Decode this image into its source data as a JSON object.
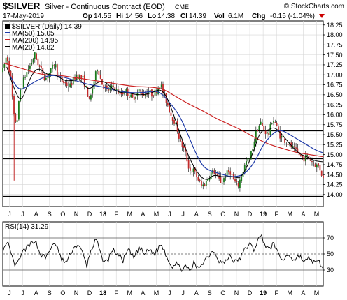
{
  "header": {
    "symbol": "$SILVER",
    "name": "Silver - Continuous Contract (EOD)",
    "exchange": "CME",
    "watermark": "© StockCharts.com",
    "date": "17-May-2019",
    "op_label": "Op",
    "op": "14.55",
    "hi_label": "Hi",
    "hi": "14.56",
    "lo_label": "Lo",
    "lo": "14.38",
    "cl_label": "Cl",
    "cl": "14.39",
    "vol_label": "Vol",
    "vol": "6.1M",
    "chg_label": "Chg",
    "chg": "-0.15 (-1.04%)",
    "chg_color": "#cc0000"
  },
  "legend": [
    {
      "label": "$SILVER (Daily) 14.39",
      "color": "#000000",
      "kind": "candle"
    },
    {
      "label": "MA(50) 15.05",
      "color": "#1f3ba8",
      "kind": "line"
    },
    {
      "label": "MA(200) 14.95",
      "color": "#cc2222",
      "kind": "line"
    },
    {
      "label": "MA(20) 14.82",
      "color": "#000000",
      "kind": "line"
    }
  ],
  "rsi_legend": "RSI(14) 31.29",
  "chart_data": {
    "type": "candlestick",
    "y_axis": {
      "min": 13.7,
      "max": 18.35,
      "ticks": [
        "18.25",
        "18.00",
        "17.75",
        "17.50",
        "17.25",
        "17.00",
        "16.75",
        "16.50",
        "16.25",
        "16.00",
        "15.75",
        "15.50",
        "15.25",
        "15.00",
        "14.75",
        "14.50",
        "14.25",
        "14.00"
      ]
    },
    "x_axis": {
      "labels": [
        "J",
        "J",
        "A",
        "S",
        "O",
        "N",
        "D",
        "18",
        "F",
        "M",
        "A",
        "M",
        "J",
        "J",
        "A",
        "S",
        "O",
        "N",
        "D",
        "19",
        "F",
        "M",
        "A",
        "M"
      ]
    },
    "horizontal_lines": [
      15.6,
      14.9,
      13.95
    ],
    "price_path": [
      [
        0,
        17.1
      ],
      [
        0.3,
        17.5
      ],
      [
        0.6,
        16.9
      ],
      [
        0.85,
        15.9
      ],
      [
        1.05,
        15.8
      ],
      [
        1.3,
        16.6
      ],
      [
        1.7,
        17.0
      ],
      [
        2.0,
        17.2
      ],
      [
        2.4,
        17.5
      ],
      [
        2.8,
        17.15
      ],
      [
        3.2,
        16.9
      ],
      [
        3.6,
        17.1
      ],
      [
        3.9,
        17.3
      ],
      [
        4.2,
        16.9
      ],
      [
        4.6,
        16.8
      ],
      [
        5.0,
        16.7
      ],
      [
        5.5,
        17.0
      ],
      [
        6.0,
        16.9
      ],
      [
        6.3,
        16.6
      ],
      [
        6.5,
        16.3
      ],
      [
        6.8,
        16.8
      ],
      [
        7.1,
        17.2
      ],
      [
        7.4,
        16.8
      ],
      [
        7.8,
        16.6
      ],
      [
        8.3,
        16.7
      ],
      [
        8.8,
        16.5
      ],
      [
        9.2,
        16.6
      ],
      [
        9.7,
        16.4
      ],
      [
        10.2,
        16.6
      ],
      [
        10.6,
        16.5
      ],
      [
        10.9,
        16.6
      ],
      [
        11.2,
        16.5
      ],
      [
        11.5,
        16.6
      ],
      [
        11.8,
        16.8
      ],
      [
        12.0,
        16.55
      ],
      [
        12.3,
        16.3
      ],
      [
        12.6,
        16.0
      ],
      [
        12.9,
        15.8
      ],
      [
        13.1,
        15.6
      ],
      [
        13.3,
        15.3
      ],
      [
        13.5,
        15.2
      ],
      [
        13.7,
        15.0
      ],
      [
        14.0,
        14.6
      ],
      [
        14.3,
        14.6
      ],
      [
        14.6,
        14.4
      ],
      [
        14.9,
        14.2
      ],
      [
        15.2,
        14.3
      ],
      [
        15.5,
        14.5
      ],
      [
        15.8,
        14.6
      ],
      [
        16.1,
        14.4
      ],
      [
        16.4,
        14.3
      ],
      [
        16.7,
        14.5
      ],
      [
        17.0,
        14.6
      ],
      [
        17.3,
        14.35
      ],
      [
        17.6,
        14.2
      ],
      [
        17.9,
        14.5
      ],
      [
        18.2,
        14.8
      ],
      [
        18.5,
        14.9
      ],
      [
        18.8,
        15.3
      ],
      [
        19.0,
        15.6
      ],
      [
        19.3,
        15.8
      ],
      [
        19.6,
        15.6
      ],
      [
        19.9,
        15.5
      ],
      [
        20.2,
        15.9
      ],
      [
        20.4,
        15.8
      ],
      [
        20.7,
        15.5
      ],
      [
        21.0,
        15.4
      ],
      [
        21.3,
        15.3
      ],
      [
        21.6,
        15.2
      ],
      [
        21.9,
        15.1
      ],
      [
        22.2,
        15.0
      ],
      [
        22.5,
        14.9
      ],
      [
        22.8,
        14.95
      ],
      [
        23.1,
        14.85
      ],
      [
        23.4,
        14.75
      ],
      [
        23.7,
        14.7
      ],
      [
        23.9,
        14.5
      ],
      [
        24.0,
        14.39
      ]
    ],
    "ma50_path": [
      [
        0.5,
        17.0
      ],
      [
        1.2,
        16.6
      ],
      [
        1.8,
        16.7
      ],
      [
        2.5,
        16.85
      ],
      [
        3.5,
        17.0
      ],
      [
        4.5,
        16.95
      ],
      [
        5.5,
        16.85
      ],
      [
        6.5,
        16.75
      ],
      [
        7.5,
        16.7
      ],
      [
        8.5,
        16.6
      ],
      [
        9.5,
        16.55
      ],
      [
        10.5,
        16.55
      ],
      [
        11.5,
        16.6
      ],
      [
        12.0,
        16.5
      ],
      [
        12.5,
        16.3
      ],
      [
        13.0,
        16.1
      ],
      [
        13.5,
        15.8
      ],
      [
        14.0,
        15.4
      ],
      [
        14.5,
        15.0
      ],
      [
        15.0,
        14.7
      ],
      [
        15.5,
        14.6
      ],
      [
        16.0,
        14.55
      ],
      [
        16.5,
        14.5
      ],
      [
        17.0,
        14.45
      ],
      [
        17.5,
        14.45
      ],
      [
        18.0,
        14.5
      ],
      [
        18.5,
        14.65
      ],
      [
        19.0,
        14.9
      ],
      [
        19.5,
        15.25
      ],
      [
        20.0,
        15.45
      ],
      [
        20.5,
        15.6
      ],
      [
        21.0,
        15.6
      ],
      [
        21.5,
        15.5
      ],
      [
        22.0,
        15.4
      ],
      [
        22.5,
        15.3
      ],
      [
        23.0,
        15.2
      ],
      [
        23.5,
        15.1
      ],
      [
        23.95,
        15.05
      ]
    ],
    "ma200_path": [
      [
        0,
        17.3
      ],
      [
        1.0,
        17.2
      ],
      [
        2.0,
        17.1
      ],
      [
        3.0,
        17.0
      ],
      [
        4.0,
        17.0
      ],
      [
        5.0,
        16.95
      ],
      [
        6.0,
        16.9
      ],
      [
        7.0,
        16.85
      ],
      [
        8.0,
        16.8
      ],
      [
        9.0,
        16.75
      ],
      [
        10.0,
        16.7
      ],
      [
        11.0,
        16.7
      ],
      [
        12.0,
        16.65
      ],
      [
        13.0,
        16.45
      ],
      [
        14.0,
        16.25
      ],
      [
        15.0,
        16.1
      ],
      [
        16.0,
        15.9
      ],
      [
        17.0,
        15.75
      ],
      [
        18.0,
        15.6
      ],
      [
        19.0,
        15.4
      ],
      [
        20.0,
        15.25
      ],
      [
        21.0,
        15.15
      ],
      [
        22.0,
        15.05
      ],
      [
        23.0,
        15.0
      ],
      [
        23.95,
        14.95
      ]
    ],
    "ma20_path": [
      [
        0.3,
        17.2
      ],
      [
        0.9,
        16.6
      ],
      [
        1.4,
        16.3
      ],
      [
        2.0,
        16.9
      ],
      [
        2.6,
        17.2
      ],
      [
        3.3,
        17.0
      ],
      [
        4.0,
        17.0
      ],
      [
        4.6,
        16.85
      ],
      [
        5.2,
        16.85
      ],
      [
        5.8,
        16.9
      ],
      [
        6.4,
        16.6
      ],
      [
        7.0,
        16.8
      ],
      [
        7.6,
        16.85
      ],
      [
        8.2,
        16.65
      ],
      [
        8.8,
        16.55
      ],
      [
        9.4,
        16.55
      ],
      [
        10.0,
        16.5
      ],
      [
        10.6,
        16.5
      ],
      [
        11.2,
        16.55
      ],
      [
        11.8,
        16.65
      ],
      [
        12.3,
        16.45
      ],
      [
        12.8,
        16.0
      ],
      [
        13.3,
        15.5
      ],
      [
        13.8,
        15.05
      ],
      [
        14.3,
        14.7
      ],
      [
        14.8,
        14.45
      ],
      [
        15.3,
        14.35
      ],
      [
        15.8,
        14.5
      ],
      [
        16.3,
        14.45
      ],
      [
        16.8,
        14.45
      ],
      [
        17.3,
        14.45
      ],
      [
        17.8,
        14.4
      ],
      [
        18.3,
        14.7
      ],
      [
        18.8,
        15.1
      ],
      [
        19.3,
        15.6
      ],
      [
        19.8,
        15.6
      ],
      [
        20.3,
        15.7
      ],
      [
        20.8,
        15.55
      ],
      [
        21.3,
        15.35
      ],
      [
        21.8,
        15.15
      ],
      [
        22.3,
        15.0
      ],
      [
        22.8,
        14.95
      ],
      [
        23.3,
        14.85
      ],
      [
        23.95,
        14.82
      ]
    ],
    "spikes": [
      {
        "x": 0.85,
        "low": 14.35,
        "high": 16.2
      }
    ],
    "rsi": {
      "y_axis": {
        "min": 10,
        "max": 90,
        "ticks": [
          "70",
          "50",
          "30"
        ],
        "reference_lines": [
          70,
          50,
          30
        ]
      },
      "path": [
        [
          0,
          55
        ],
        [
          0.4,
          62
        ],
        [
          0.8,
          40
        ],
        [
          1.0,
          35
        ],
        [
          1.3,
          45
        ],
        [
          1.6,
          55
        ],
        [
          2.0,
          60
        ],
        [
          2.4,
          68
        ],
        [
          2.8,
          50
        ],
        [
          3.2,
          45
        ],
        [
          3.6,
          58
        ],
        [
          4.0,
          62
        ],
        [
          4.4,
          42
        ],
        [
          4.8,
          40
        ],
        [
          5.2,
          55
        ],
        [
          5.6,
          62
        ],
        [
          6.0,
          50
        ],
        [
          6.3,
          35
        ],
        [
          6.6,
          55
        ],
        [
          7.0,
          68
        ],
        [
          7.4,
          45
        ],
        [
          7.8,
          40
        ],
        [
          8.2,
          55
        ],
        [
          8.6,
          50
        ],
        [
          9.0,
          42
        ],
        [
          9.4,
          55
        ],
        [
          9.8,
          45
        ],
        [
          10.2,
          58
        ],
        [
          10.6,
          50
        ],
        [
          11.0,
          55
        ],
        [
          11.4,
          50
        ],
        [
          11.8,
          62
        ],
        [
          12.1,
          55
        ],
        [
          12.4,
          42
        ],
        [
          12.7,
          35
        ],
        [
          13.0,
          40
        ],
        [
          13.3,
          30
        ],
        [
          13.6,
          35
        ],
        [
          14.0,
          28
        ],
        [
          14.3,
          38
        ],
        [
          14.6,
          32
        ],
        [
          15.0,
          40
        ],
        [
          15.4,
          48
        ],
        [
          15.8,
          55
        ],
        [
          16.2,
          42
        ],
        [
          16.6,
          38
        ],
        [
          17.0,
          48
        ],
        [
          17.4,
          40
        ],
        [
          17.8,
          45
        ],
        [
          18.2,
          58
        ],
        [
          18.5,
          62
        ],
        [
          18.8,
          55
        ],
        [
          19.1,
          68
        ],
        [
          19.4,
          72
        ],
        [
          19.7,
          60
        ],
        [
          20.0,
          55
        ],
        [
          20.3,
          65
        ],
        [
          20.6,
          50
        ],
        [
          21.0,
          42
        ],
        [
          21.4,
          50
        ],
        [
          21.8,
          42
        ],
        [
          22.2,
          48
        ],
        [
          22.6,
          40
        ],
        [
          23.0,
          45
        ],
        [
          23.4,
          38
        ],
        [
          23.7,
          40
        ],
        [
          24.0,
          31.29
        ]
      ]
    }
  }
}
